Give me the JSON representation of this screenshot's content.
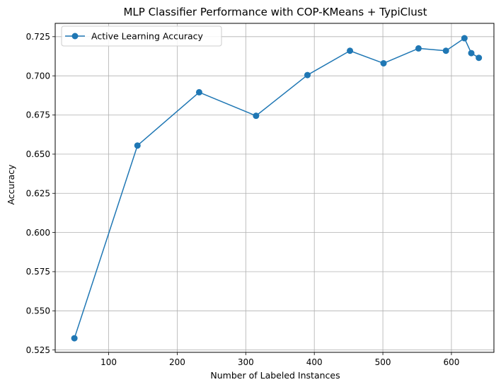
{
  "chart_data": {
    "type": "line",
    "title": "MLP Classifier Performance with COP-KMeans + TypiClust",
    "xlabel": "Number of Labeled Instances",
    "ylabel": "Accuracy",
    "xlim": [
      22,
      662
    ],
    "ylim": [
      0.5235,
      0.7335
    ],
    "xticks": [
      100,
      200,
      300,
      400,
      500,
      600
    ],
    "yticks": [
      0.525,
      0.55,
      0.575,
      0.6,
      0.625,
      0.65,
      0.675,
      0.7,
      0.725
    ],
    "grid": true,
    "legend": "upper-left",
    "series": [
      {
        "name": "Active Learning Accuracy",
        "color": "#1f77b4",
        "marker": "circle",
        "x": [
          50,
          142,
          232,
          315,
          390,
          452,
          501,
          552,
          592,
          619,
          629,
          640
        ],
        "y": [
          0.5325,
          0.6555,
          0.6895,
          0.6745,
          0.7005,
          0.716,
          0.708,
          0.7175,
          0.716,
          0.724,
          0.7145,
          0.7115
        ]
      }
    ]
  }
}
